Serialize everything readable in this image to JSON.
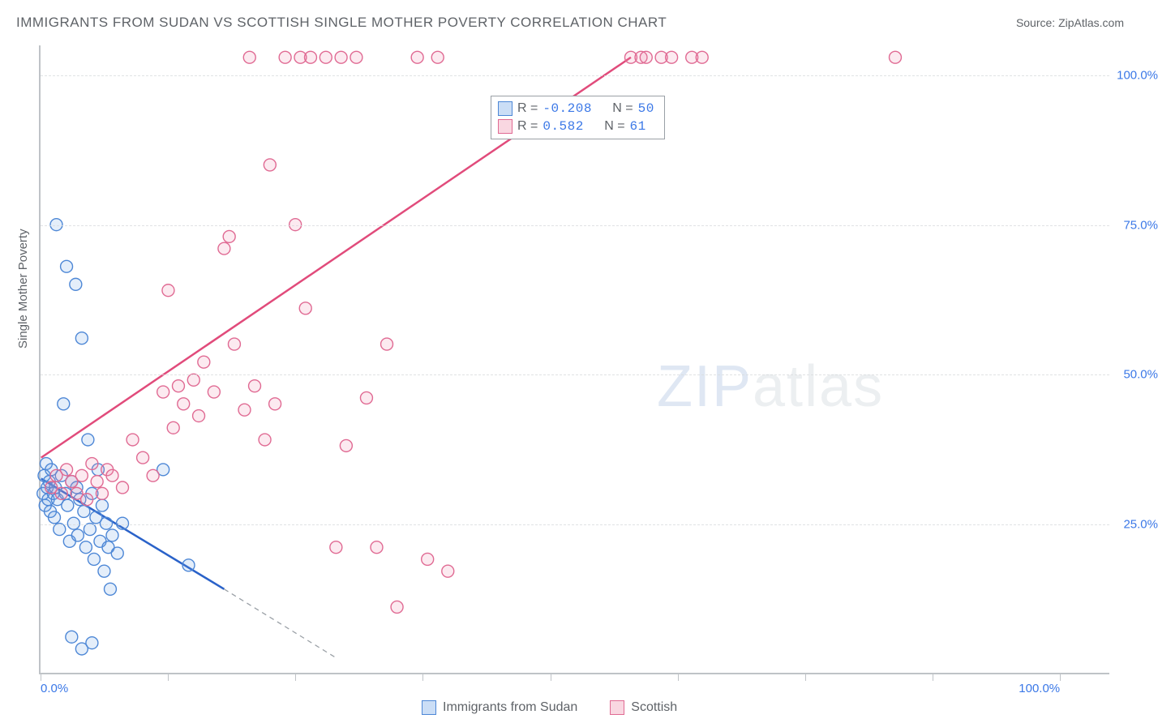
{
  "title": "IMMIGRANTS FROM SUDAN VS SCOTTISH SINGLE MOTHER POVERTY CORRELATION CHART",
  "source_label": "Source: ZipAtlas.com",
  "y_axis_label": "Single Mother Poverty",
  "watermark_zip": "ZIP",
  "watermark_atlas": "atlas",
  "chart": {
    "type": "scatter",
    "background_color": "#ffffff",
    "grid_color": "#d9dcde",
    "axis_color": "#bfc3c7",
    "xlim": [
      0,
      105
    ],
    "ylim": [
      0,
      105
    ],
    "xticks": [
      0,
      12.5,
      25,
      37.5,
      50,
      62.5,
      75,
      87.5,
      100
    ],
    "xtick_labels": {
      "0": "0.0%",
      "100": "100.0%"
    },
    "yticks": [
      25,
      50,
      75,
      100
    ],
    "ytick_labels": {
      "25": "25.0%",
      "50": "50.0%",
      "75": "75.0%",
      "100": "100.0%"
    },
    "marker_radius": 7.5,
    "marker_fill_opacity": 0.18,
    "marker_stroke_width": 1.4,
    "series": [
      {
        "name": "Immigrants from Sudan",
        "color_fill": "#6aa0e6",
        "color_stroke": "#4d87d6",
        "R": "-0.208",
        "N": "50",
        "trend": {
          "x1": 0,
          "y1": 32.5,
          "x2": 18,
          "y2": 14,
          "extend_dash_to_x": 29,
          "extend_dash_to_y": 2.5,
          "color": "#2a62c9",
          "width": 2.5
        },
        "points": [
          [
            0.2,
            30
          ],
          [
            0.3,
            33
          ],
          [
            0.4,
            28
          ],
          [
            0.5,
            35
          ],
          [
            0.6,
            31
          ],
          [
            0.7,
            29
          ],
          [
            0.8,
            32
          ],
          [
            0.9,
            27
          ],
          [
            1.0,
            34
          ],
          [
            1.2,
            30
          ],
          [
            1.3,
            26
          ],
          [
            1.4,
            31
          ],
          [
            1.5,
            75
          ],
          [
            1.6,
            29
          ],
          [
            1.8,
            24
          ],
          [
            2.0,
            33
          ],
          [
            2.2,
            45
          ],
          [
            2.4,
            30
          ],
          [
            2.5,
            68
          ],
          [
            2.6,
            28
          ],
          [
            2.8,
            22
          ],
          [
            3.0,
            32
          ],
          [
            3.2,
            25
          ],
          [
            3.4,
            65
          ],
          [
            3.5,
            31
          ],
          [
            3.6,
            23
          ],
          [
            3.8,
            29
          ],
          [
            4.0,
            56
          ],
          [
            4.2,
            27
          ],
          [
            4.4,
            21
          ],
          [
            4.6,
            39
          ],
          [
            4.8,
            24
          ],
          [
            5.0,
            30
          ],
          [
            5.2,
            19
          ],
          [
            5.4,
            26
          ],
          [
            5.6,
            34
          ],
          [
            5.8,
            22
          ],
          [
            6.0,
            28
          ],
          [
            6.2,
            17
          ],
          [
            6.4,
            25
          ],
          [
            6.6,
            21
          ],
          [
            6.8,
            14
          ],
          [
            4.0,
            4
          ],
          [
            5.0,
            5
          ],
          [
            7.0,
            23
          ],
          [
            7.5,
            20
          ],
          [
            8.0,
            25
          ],
          [
            12.0,
            34
          ],
          [
            14.5,
            18
          ],
          [
            3.0,
            6
          ]
        ]
      },
      {
        "name": "Scottish",
        "color_fill": "#ef8caa",
        "color_stroke": "#e06a93",
        "R": "0.582",
        "N": "61",
        "trend": {
          "x1": 0,
          "y1": 36,
          "x2": 58,
          "y2": 103,
          "color": "#e14b7b",
          "width": 2.5
        },
        "points": [
          [
            1.0,
            31
          ],
          [
            1.5,
            33
          ],
          [
            2.0,
            30
          ],
          [
            2.5,
            34
          ],
          [
            3.0,
            32
          ],
          [
            3.5,
            30
          ],
          [
            4.0,
            33
          ],
          [
            4.5,
            29
          ],
          [
            5.0,
            35
          ],
          [
            5.5,
            32
          ],
          [
            6.0,
            30
          ],
          [
            6.5,
            34
          ],
          [
            7.0,
            33
          ],
          [
            8.0,
            31
          ],
          [
            9.0,
            39
          ],
          [
            10.0,
            36
          ],
          [
            11.0,
            33
          ],
          [
            12.0,
            47
          ],
          [
            12.5,
            64
          ],
          [
            13.0,
            41
          ],
          [
            13.5,
            48
          ],
          [
            14.0,
            45
          ],
          [
            15.0,
            49
          ],
          [
            15.5,
            43
          ],
          [
            16.0,
            52
          ],
          [
            17.0,
            47
          ],
          [
            18.0,
            71
          ],
          [
            18.5,
            73
          ],
          [
            19.0,
            55
          ],
          [
            20.0,
            44
          ],
          [
            20.5,
            103
          ],
          [
            21.0,
            48
          ],
          [
            22.0,
            39
          ],
          [
            22.5,
            85
          ],
          [
            23.0,
            45
          ],
          [
            24.0,
            103
          ],
          [
            25.0,
            75
          ],
          [
            25.5,
            103
          ],
          [
            26.0,
            61
          ],
          [
            26.5,
            103
          ],
          [
            28.0,
            103
          ],
          [
            29.0,
            21
          ],
          [
            29.5,
            103
          ],
          [
            30.0,
            38
          ],
          [
            31.0,
            103
          ],
          [
            32.0,
            46
          ],
          [
            33.0,
            21
          ],
          [
            34.0,
            55
          ],
          [
            35.0,
            11
          ],
          [
            37.0,
            103
          ],
          [
            38.0,
            19
          ],
          [
            39.0,
            103
          ],
          [
            40.0,
            17
          ],
          [
            58.0,
            103
          ],
          [
            59.0,
            103
          ],
          [
            59.5,
            103
          ],
          [
            61.0,
            103
          ],
          [
            62.0,
            103
          ],
          [
            64.0,
            103
          ],
          [
            65.0,
            103
          ],
          [
            84.0,
            103
          ]
        ]
      }
    ]
  },
  "stats_legend_labels": {
    "R": "R =",
    "N": "N ="
  },
  "bottom_legend": [
    {
      "swatch": "blue",
      "label": "Immigrants from Sudan"
    },
    {
      "swatch": "pink",
      "label": "Scottish"
    }
  ]
}
